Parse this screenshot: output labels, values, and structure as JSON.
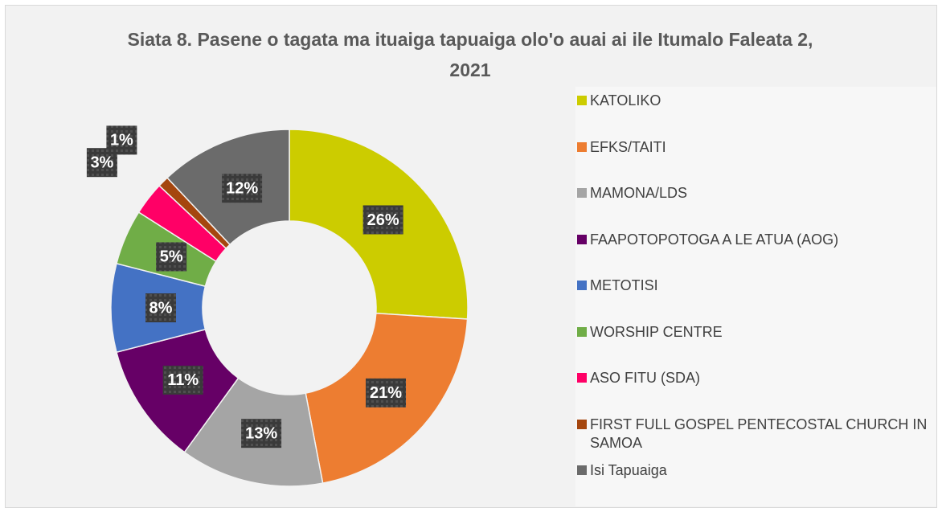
{
  "chart_data": {
    "type": "donut",
    "title": "Siata 8. Pasene o tagata ma ituaiga tapuaiga olo'o auai ai ile Itumalo Faleata 2, 2021",
    "categories": [
      "KATOLIKO",
      "EFKS/TAITI",
      "MAMONA/LDS",
      "FAAPOTOPOTOGA A LE ATUA (AOG)",
      "METOTISI",
      "WORSHIP CENTRE",
      "ASO FITU (SDA)",
      "FIRST FULL GOSPEL PENTECOSTAL CHURCH IN SAMOA",
      "Isi Tapuaiga"
    ],
    "values": [
      26,
      21,
      13,
      11,
      8,
      5,
      3,
      1,
      12
    ],
    "value_labels": [
      "26%",
      "21%",
      "13%",
      "11%",
      "8%",
      "5%",
      "3%",
      "1%",
      "12%"
    ],
    "colors": [
      "#cccc00",
      "#ed7d31",
      "#a5a5a5",
      "#660066",
      "#4472c4",
      "#70ad47",
      "#ff0066",
      "#a5460e",
      "#6b6b6b"
    ],
    "legend": "right"
  }
}
